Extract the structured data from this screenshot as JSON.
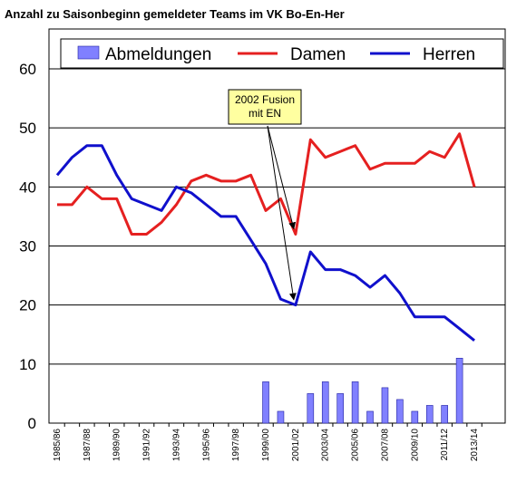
{
  "chart_data": {
    "type": "line",
    "title": "Anzahl zu Saisonbeginn gemeldeter Teams im VK Bo-En-Her",
    "xlabel": "",
    "ylabel": "",
    "ylim": [
      0,
      60
    ],
    "yticks": [
      0,
      10,
      20,
      30,
      40,
      50,
      60
    ],
    "grid": "horizontal",
    "legend_position": "top",
    "categories": [
      "1985/86",
      "1986/87",
      "1987/88",
      "1988/89",
      "1989/90",
      "1990/91",
      "1991/92",
      "1992/93",
      "1993/94",
      "1994/95",
      "1995/96",
      "1996/97",
      "1997/98",
      "1998/99",
      "1999/00",
      "2000/01",
      "2001/02",
      "2002/03",
      "2003/04",
      "2004/05",
      "2005/06",
      "2006/07",
      "2007/08",
      "2008/09",
      "2009/10",
      "2010/11",
      "2011/12",
      "2012/13",
      "2013/14"
    ],
    "tick_labels": [
      "1985/86",
      "1987/88",
      "1989/90",
      "1991/92",
      "1993/94",
      "1995/96",
      "1997/98",
      "1999/00",
      "2001/02",
      "2003/04",
      "2005/06",
      "2007/08",
      "2009/10",
      "2011/12",
      "2013/14"
    ],
    "series": [
      {
        "name": "Abmeldungen",
        "type": "bar",
        "color": "#8080ff",
        "values": [
          null,
          null,
          null,
          null,
          null,
          null,
          null,
          null,
          null,
          null,
          null,
          null,
          null,
          null,
          7,
          2,
          null,
          5,
          7,
          5,
          7,
          2,
          6,
          4,
          2,
          3,
          3,
          11,
          null
        ]
      },
      {
        "name": "Damen",
        "type": "line",
        "color": "#e52020",
        "values": [
          37,
          37,
          40,
          38,
          38,
          32,
          32,
          34,
          37,
          41,
          42,
          41,
          41,
          42,
          36,
          38,
          32,
          48,
          45,
          46,
          47,
          43,
          44,
          44,
          44,
          46,
          45,
          49,
          40
        ]
      },
      {
        "name": "Herren",
        "type": "line",
        "color": "#1010cc",
        "values": [
          42,
          45,
          47,
          47,
          42,
          38,
          37,
          36,
          40,
          39,
          37,
          35,
          35,
          31,
          27,
          21,
          20,
          29,
          26,
          26,
          25,
          23,
          25,
          22,
          18,
          18,
          18,
          16,
          14
        ]
      }
    ],
    "annotation": {
      "text_lines": [
        "2002 Fusion",
        "mit EN"
      ],
      "points_to": [
        {
          "series": "Damen",
          "category": "2001/02"
        },
        {
          "series": "Herren",
          "category": "2001/02"
        }
      ],
      "box_color": "#ffffa0"
    }
  }
}
